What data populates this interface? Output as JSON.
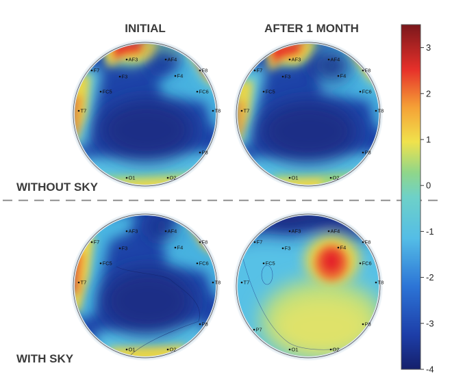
{
  "headers": {
    "initial": "INITIAL",
    "after": "AFTER 1 MONTH",
    "without": "WITHOUT SKY",
    "with": "WITH SKY"
  },
  "electrodes": [
    "AF3",
    "AF4",
    "F7",
    "F3",
    "F4",
    "F8",
    "FC5",
    "FC6",
    "T7",
    "T8",
    "P7",
    "P8",
    "O1",
    "O2"
  ],
  "colorbar": {
    "ticks": [
      "3",
      "2",
      "1",
      "0",
      "-1",
      "-2",
      "-3",
      "-4"
    ],
    "range": [
      -4,
      3.5
    ]
  },
  "colors": {
    "dark_blue": "#1c2f86",
    "blue": "#1e4fb6",
    "cyan": "#5fc6e6",
    "yellow": "#f1e34a",
    "red": "#e7262a",
    "dark_red": "#7d1b1f",
    "divider": "#9b9b9b"
  }
}
